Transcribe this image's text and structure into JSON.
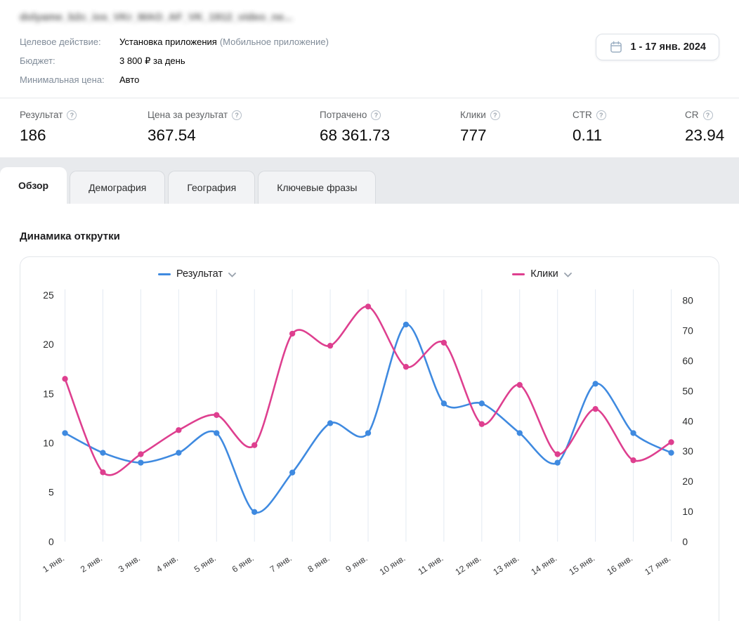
{
  "header": {
    "campaign_name": "dolyame_b2c_ios_VKr_MAO_AF_VK_1912_video_ne...",
    "info": [
      {
        "label": "Целевое действие:",
        "value": "Установка приложения",
        "value_secondary": "(Мобильное приложение)"
      },
      {
        "label": "Бюджет:",
        "value": "3 800 ₽ за день",
        "value_secondary": ""
      },
      {
        "label": "Минимальная цена:",
        "value": "Авто",
        "value_secondary": ""
      }
    ],
    "date_range": "1 - 17 янв. 2024"
  },
  "stats": [
    {
      "label": "Результат",
      "value": "186"
    },
    {
      "label": "Цена за результат",
      "value": "367.54"
    },
    {
      "label": "Потрачено",
      "value": "68 361.73"
    },
    {
      "label": "Клики",
      "value": "777"
    },
    {
      "label": "CTR",
      "value": "0.11"
    },
    {
      "label": "CR",
      "value": "23.94"
    }
  ],
  "tabs": [
    {
      "label": "Обзор",
      "active": true
    },
    {
      "label": "Демография",
      "active": false
    },
    {
      "label": "География",
      "active": false
    },
    {
      "label": "Ключевые фразы",
      "active": false
    }
  ],
  "section_title": "Динамика открутки",
  "colors": {
    "accent_blue": "#3f8ae0",
    "accent_pink": "#de3f8f",
    "grid": "#e3eaf2"
  },
  "chart_data": {
    "type": "line",
    "title": "Динамика открутки",
    "x": [
      "1 янв.",
      "2 янв.",
      "3 янв.",
      "4 янв.",
      "5 янв.",
      "6 янв.",
      "7 янв.",
      "8 янв.",
      "9 янв.",
      "10 янв.",
      "11 янв.",
      "12 янв.",
      "13 янв.",
      "14 янв.",
      "15 янв.",
      "16 янв.",
      "17 янв."
    ],
    "series": [
      {
        "name": "Результат",
        "axis": "left",
        "color": "#3f8ae0",
        "values": [
          11,
          9,
          8,
          9,
          11,
          3,
          7,
          12,
          11,
          22,
          14,
          14,
          11,
          8,
          16,
          11,
          9
        ]
      },
      {
        "name": "Клики",
        "axis": "right",
        "color": "#de3f8f",
        "values": [
          54,
          23,
          29,
          37,
          42,
          32,
          69,
          65,
          78,
          58,
          66,
          39,
          52,
          29,
          44,
          27,
          33
        ]
      }
    ],
    "left_axis": {
      "min": 0,
      "max": 25,
      "step": 5
    },
    "right_axis": {
      "min": 0,
      "max": 80,
      "step": 10
    },
    "grid": "vertical",
    "grid_color": "#e3eaf2",
    "legend_position": "top"
  }
}
